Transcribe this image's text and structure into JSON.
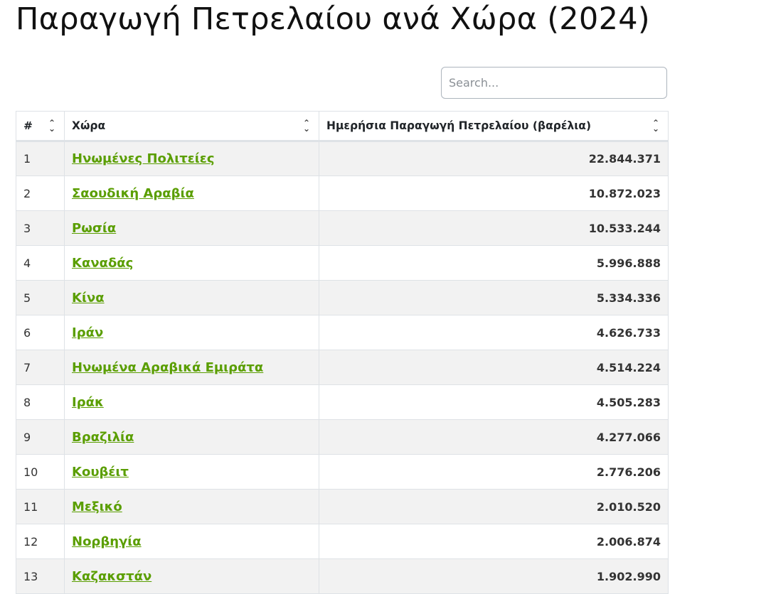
{
  "title": "Παραγωγή Πετρελαίου ανά Χώρα (2024)",
  "search": {
    "placeholder": "Search...",
    "value": ""
  },
  "table": {
    "headers": [
      "#",
      "Χώρα",
      "Ημερήσια Παραγωγή Πετρελαίου (βαρέλια)"
    ],
    "rows": [
      {
        "rank": "1",
        "country": "Ηνωμένες Πολιτείες",
        "value": "22.844.371"
      },
      {
        "rank": "2",
        "country": "Σαουδική Αραβία",
        "value": "10.872.023"
      },
      {
        "rank": "3",
        "country": "Ρωσία",
        "value": "10.533.244"
      },
      {
        "rank": "4",
        "country": "Καναδάς",
        "value": "5.996.888"
      },
      {
        "rank": "5",
        "country": "Κίνα",
        "value": "5.334.336"
      },
      {
        "rank": "6",
        "country": "Ιράν",
        "value": "4.626.733"
      },
      {
        "rank": "7",
        "country": "Ηνωμένα Αραβικά Εμιράτα",
        "value": "4.514.224"
      },
      {
        "rank": "8",
        "country": "Ιράκ",
        "value": "4.505.283"
      },
      {
        "rank": "9",
        "country": "Βραζιλία",
        "value": "4.277.066"
      },
      {
        "rank": "10",
        "country": "Κουβέιτ",
        "value": "2.776.206"
      },
      {
        "rank": "11",
        "country": "Μεξικό",
        "value": "2.010.520"
      },
      {
        "rank": "12",
        "country": "Νορβηγία",
        "value": "2.006.874"
      },
      {
        "rank": "13",
        "country": "Καζακστάν",
        "value": "1.902.990"
      }
    ]
  },
  "colors": {
    "link": "#5a9e00",
    "stripe": "#f2f2f2",
    "border": "#dee2e6"
  },
  "icons": {
    "sort": "sort-up-down-icon"
  }
}
